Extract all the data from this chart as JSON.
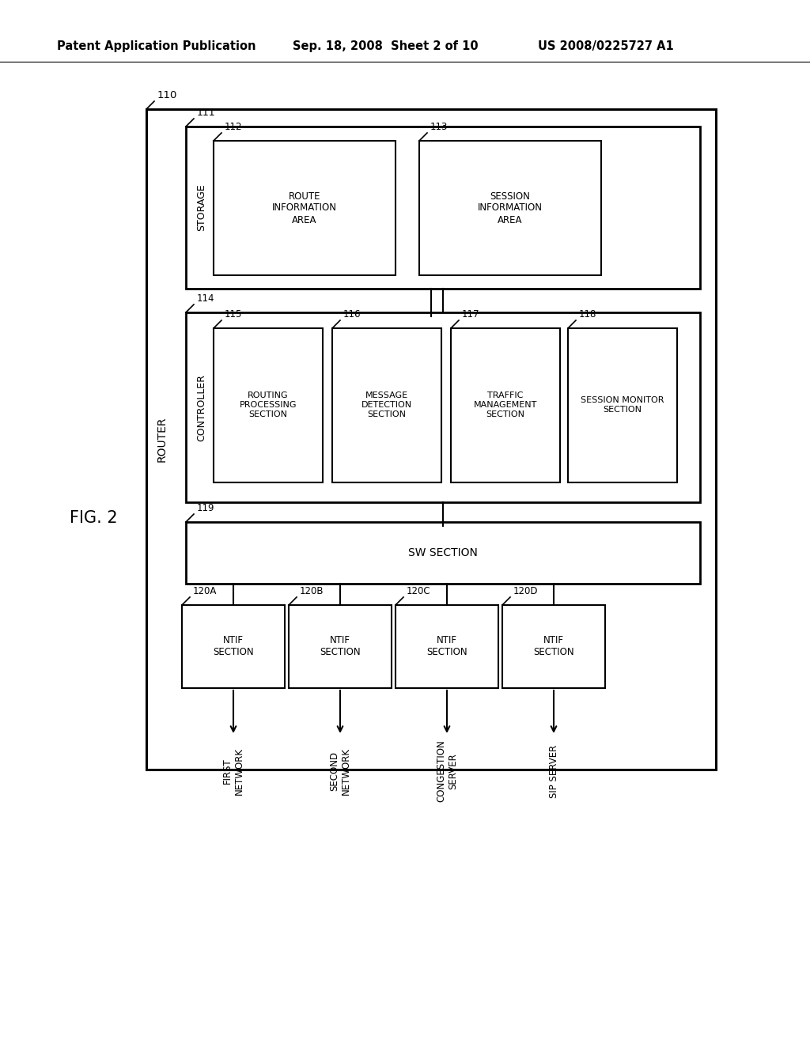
{
  "background_color": "#ffffff",
  "header_left": "Patent Application Publication",
  "header_mid": "Sep. 18, 2008  Sheet 2 of 10",
  "header_right": "US 2008/0225727 A1",
  "fig_label": "FIG. 2",
  "router_label": "ROUTER",
  "router_num": "110",
  "storage_label": "STORAGE",
  "storage_num": "111",
  "route_info_num": "112",
  "route_info_text": "ROUTE\nINFORMATION\nAREA",
  "session_info_num": "113",
  "session_info_text": "SESSION\nINFORMATION\nAREA",
  "controller_label": "CONTROLLER",
  "controller_num": "114",
  "routing_proc_num": "115",
  "routing_proc_text": "ROUTING\nPROCESSING\nSECTION",
  "msg_detect_num": "116",
  "msg_detect_text": "MESSAGE\nDETECTION\nSECTION",
  "traffic_mgmt_num": "117",
  "traffic_mgmt_text": "TRAFFIC\nMANAGEMENT\nSECTION",
  "session_mon_num": "118",
  "session_mon_text": "SESSION MONITOR\nSECTION",
  "sw_section_num": "119",
  "sw_section_text": "SW SECTION",
  "ntif_labels": [
    "120A",
    "120B",
    "120C",
    "120D"
  ],
  "ntif_text": "NTIF\nSECTION",
  "net_labels": [
    "FIRST\nNETWORK",
    "SECOND\nNETWORK",
    "CONGESTION\nSERVER",
    "SIP SERVER"
  ]
}
